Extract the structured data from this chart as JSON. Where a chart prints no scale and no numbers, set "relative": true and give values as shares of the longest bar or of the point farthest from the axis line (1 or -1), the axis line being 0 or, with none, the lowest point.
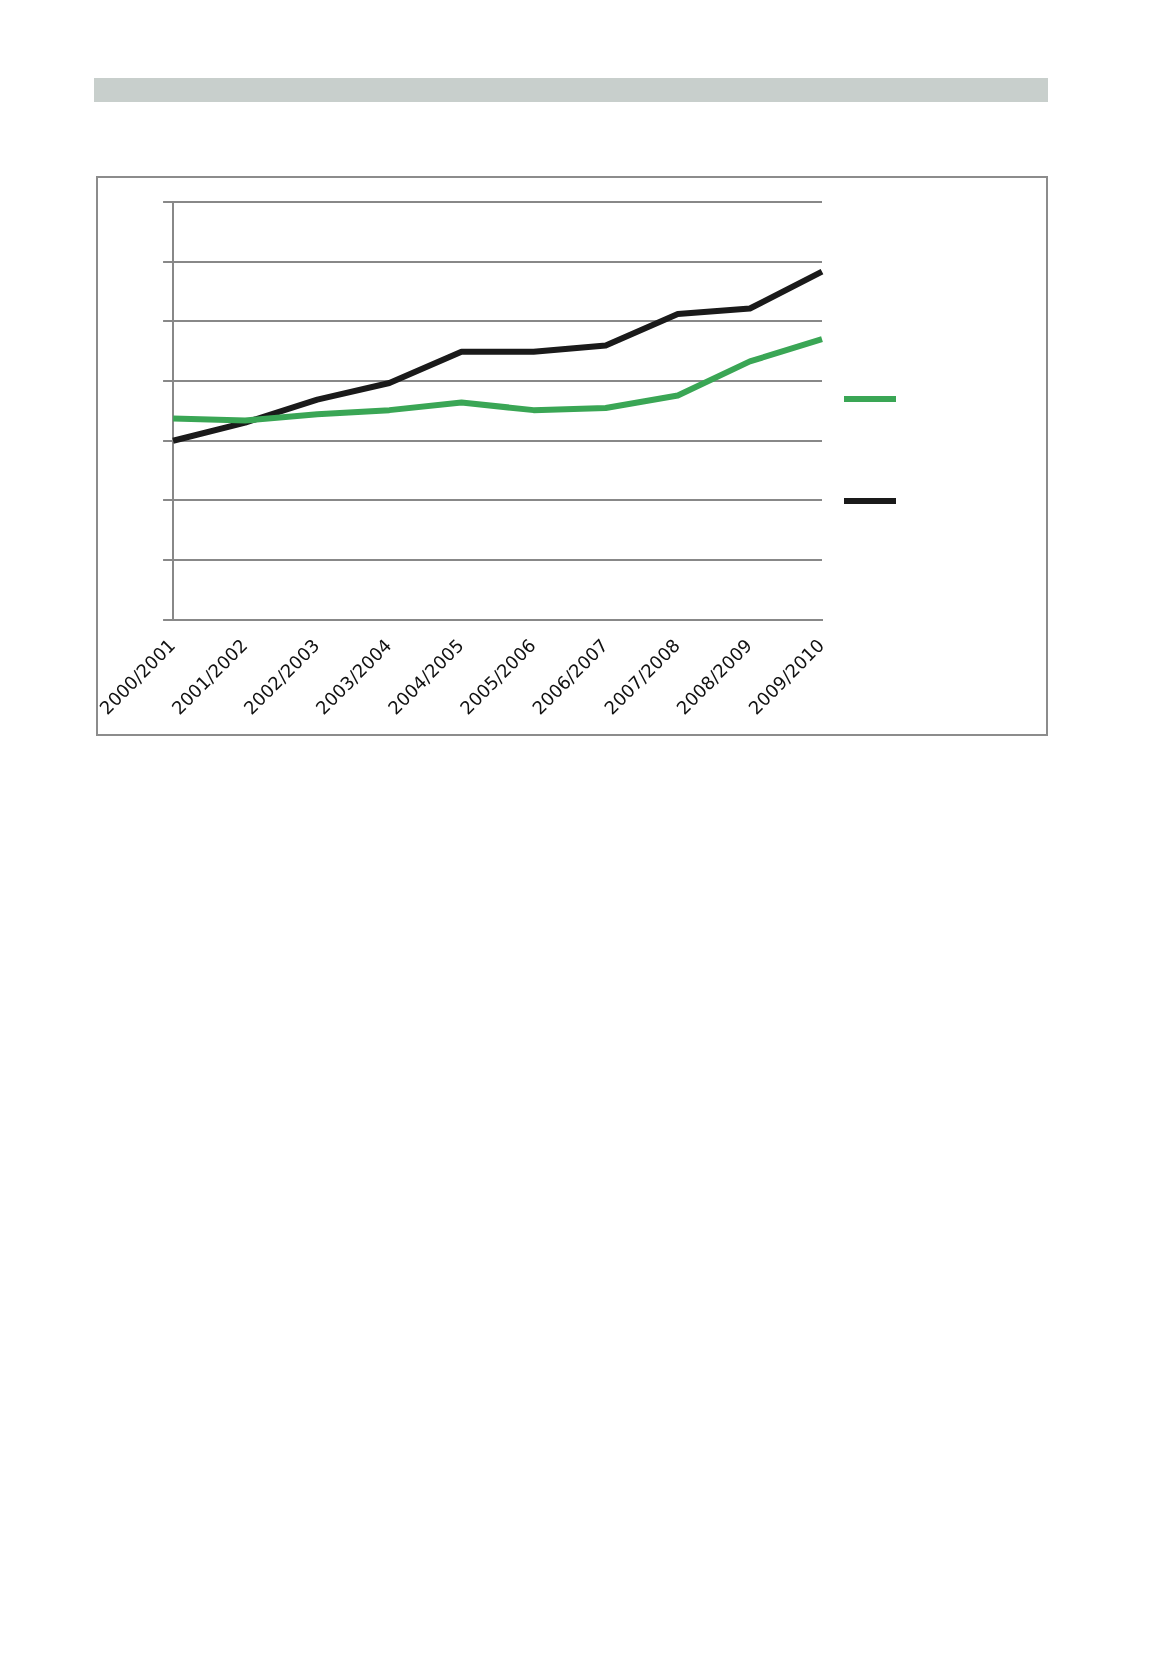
{
  "chart_data": {
    "type": "line",
    "relative": true,
    "categories": [
      "2000/2001",
      "2001/2002",
      "2002/2003",
      "2003/2004",
      "2004/2005",
      "2005/2006",
      "2006/2007",
      "2007/2008",
      "2008/2009",
      "2009/2010"
    ],
    "series": [
      {
        "color": "#3aa655",
        "values": [
          0.578,
          0.572,
          0.59,
          0.602,
          0.624,
          0.602,
          0.608,
          0.644,
          0.742,
          0.806
        ]
      },
      {
        "color": "#1a1a1a",
        "values": [
          0.514,
          0.566,
          0.632,
          0.68,
          0.77,
          0.77,
          0.788,
          0.878,
          0.894,
          1.0
        ]
      }
    ],
    "grid": "y",
    "marker": "none",
    "line_style": "solid"
  }
}
